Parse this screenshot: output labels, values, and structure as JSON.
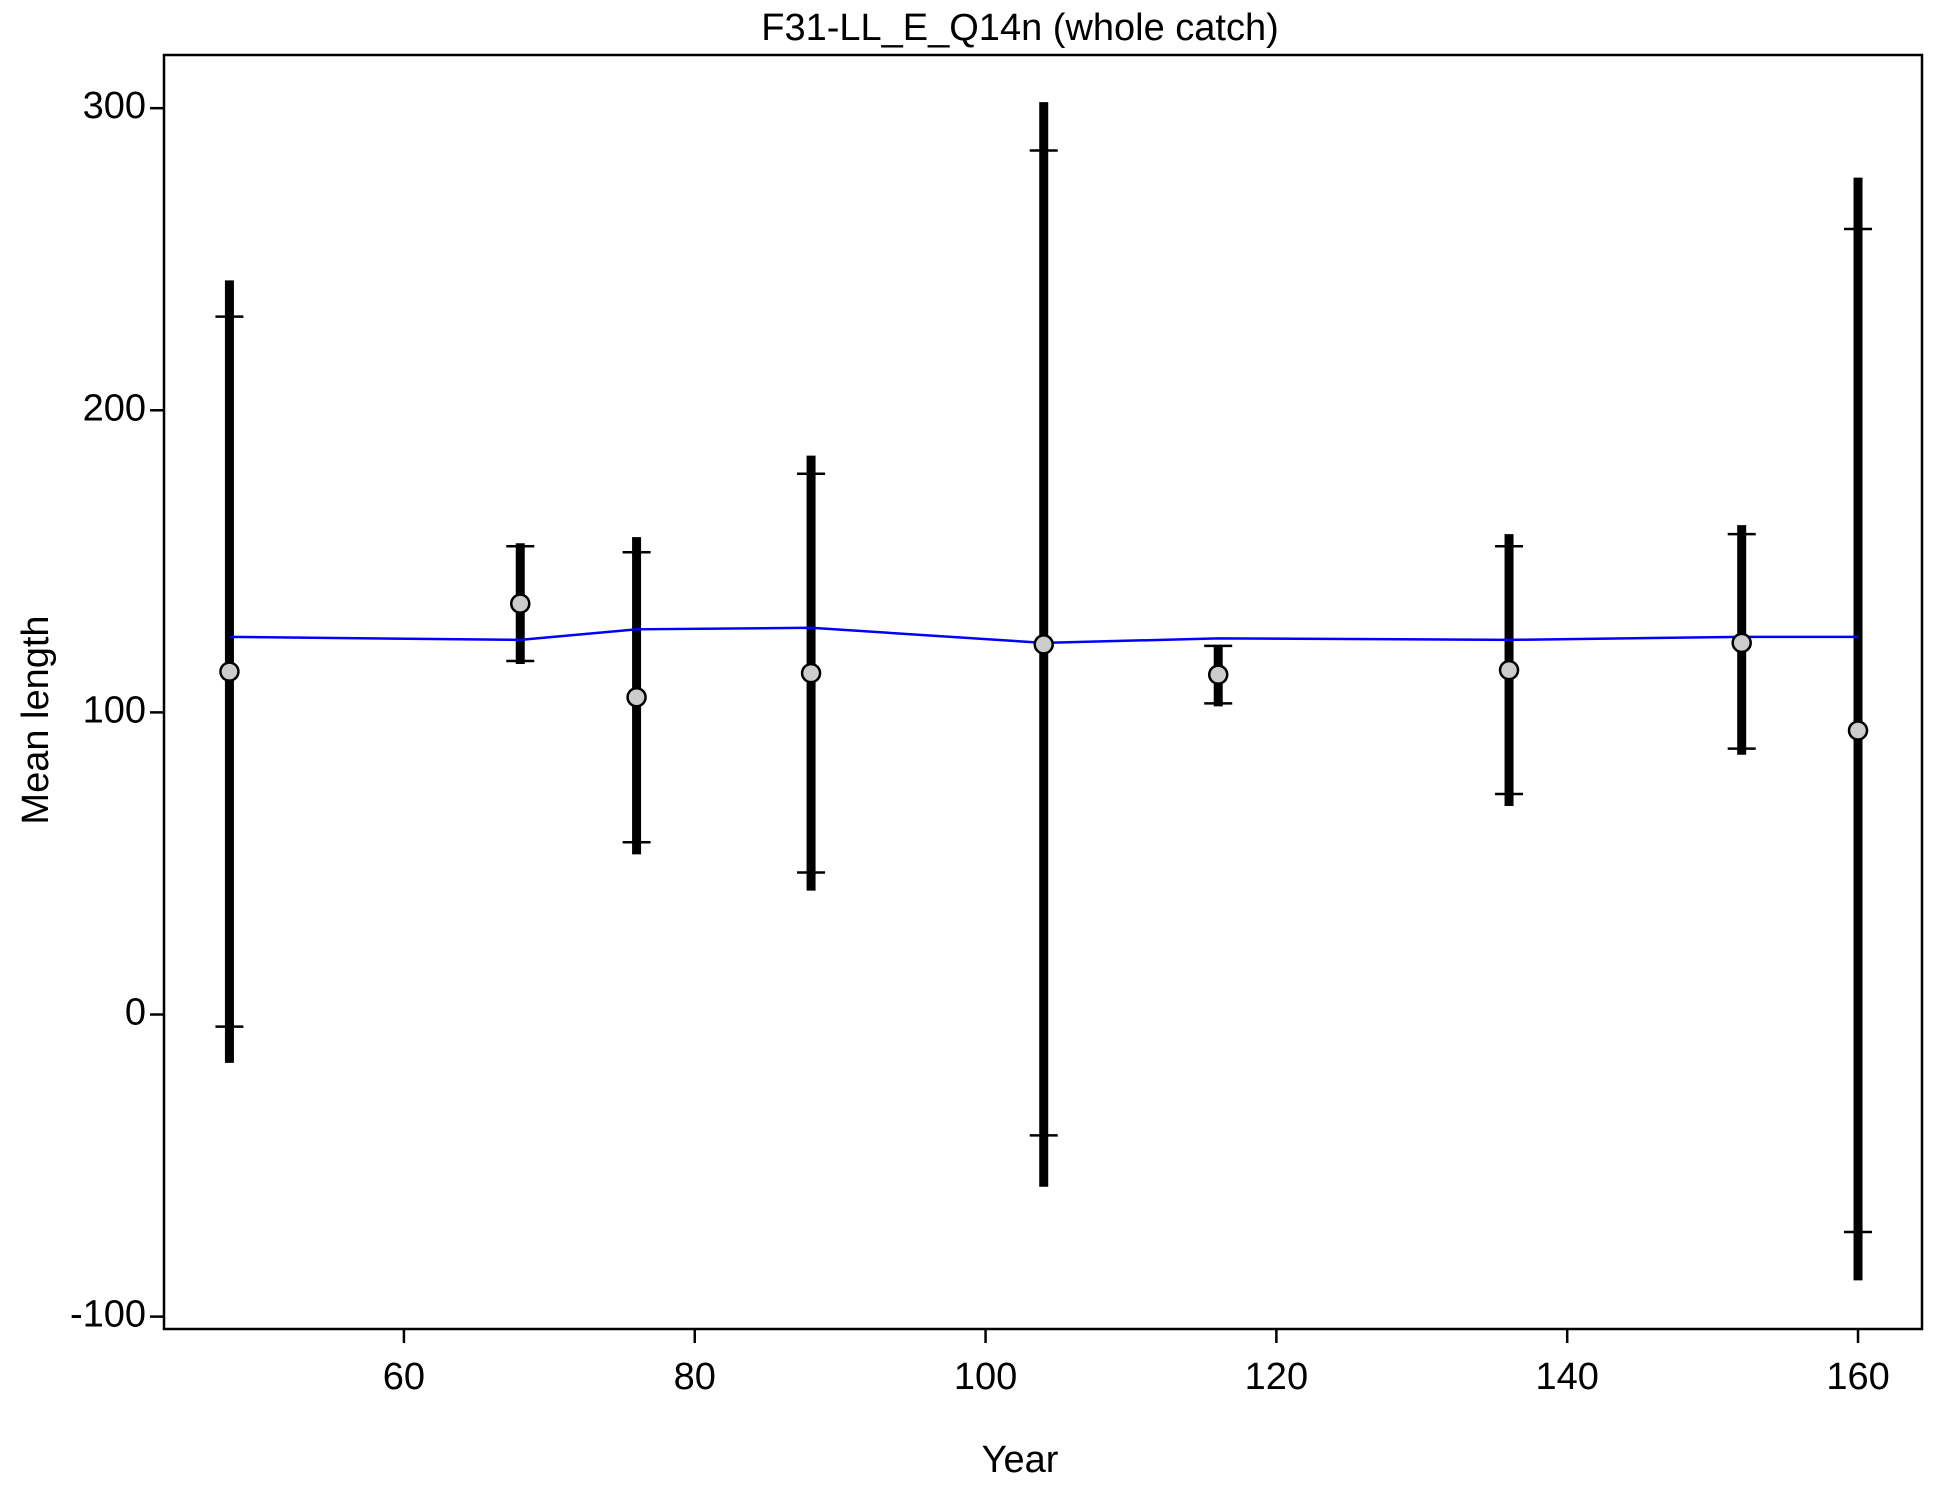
{
  "chart_data": {
    "type": "errorbar",
    "title": "F31-LL_E_Q14n (whole catch)",
    "xlabel": "Year",
    "ylabel": "Mean length",
    "x": [
      48,
      68,
      76,
      88,
      104,
      116,
      136,
      152,
      160
    ],
    "observed": [
      113.5,
      136,
      105,
      113,
      122.5,
      112.5,
      114,
      123,
      94
    ],
    "expected": [
      125,
      124,
      127.5,
      128,
      123,
      124.5,
      124,
      125,
      125
    ],
    "outer_upper": [
      243,
      156,
      158,
      185,
      302,
      122,
      159,
      162,
      277
    ],
    "outer_lower": [
      -16,
      116,
      53,
      41,
      -57,
      102,
      69,
      86,
      -88
    ],
    "inner_upper": [
      231,
      155,
      153,
      179,
      286,
      122,
      155,
      159,
      260
    ],
    "inner_lower": [
      -4,
      117,
      57,
      47,
      -40,
      103,
      73,
      88,
      -72
    ],
    "point_color": "#cccccc",
    "line_color": "#0000ff",
    "bar_color": "#000000",
    "xlim": [
      43.5,
      164.4
    ],
    "ylim": [
      -104.1,
      317.6
    ],
    "xticks": [
      60,
      80,
      100,
      120,
      140,
      160
    ],
    "yticks": [
      -100,
      0,
      100,
      200,
      300
    ]
  }
}
